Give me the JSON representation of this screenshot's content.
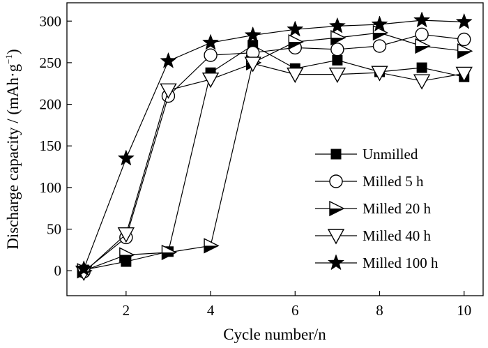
{
  "chart_data": {
    "type": "line",
    "title": "",
    "xlabel": "Cycle number/n",
    "ylabel": "Discharge capacity / (mAh·g",
    "ylabel_sup": "−1",
    "ylabel_close": ")",
    "xlim": [
      0.6,
      10.45
    ],
    "ylim": [
      -30,
      322
    ],
    "xticks": [
      2,
      4,
      6,
      8,
      10
    ],
    "xtick_labels": [
      "2",
      "4",
      "6",
      "8",
      "10"
    ],
    "yticks": [
      0,
      50,
      100,
      150,
      200,
      250,
      300
    ],
    "ytick_labels": [
      "0",
      "50",
      "100",
      "150",
      "200",
      "250",
      "300"
    ],
    "grid": false,
    "legend_position": "right",
    "colors": {
      "line": "#000000",
      "background": "#ffffff"
    },
    "x": [
      1,
      2,
      3,
      4,
      5,
      6,
      7,
      8,
      9,
      10
    ],
    "series": [
      {
        "name": "Unmilled",
        "marker": "filled-square",
        "values": [
          1,
          11,
          23,
          238,
          271,
          243,
          253,
          239,
          244,
          233
        ]
      },
      {
        "name": "Milled 5 h",
        "marker": "open-circle",
        "values": [
          -1,
          40,
          210,
          259,
          262,
          268,
          266,
          270,
          284,
          278
        ]
      },
      {
        "name": "Milled 20 h",
        "marker": "right-triangle",
        "values": [
          0,
          19,
          22,
          30,
          250,
          275,
          280,
          286,
          270,
          264
        ]
      },
      {
        "name": "Milled 40 h",
        "marker": "down-triangle",
        "values": [
          -2,
          44,
          217,
          230,
          249,
          236,
          236,
          238,
          228,
          237
        ]
      },
      {
        "name": "Milled 100 h",
        "marker": "filled-star",
        "values": [
          2,
          135,
          252,
          274,
          283,
          290,
          294,
          296,
          301,
          299
        ]
      }
    ]
  }
}
